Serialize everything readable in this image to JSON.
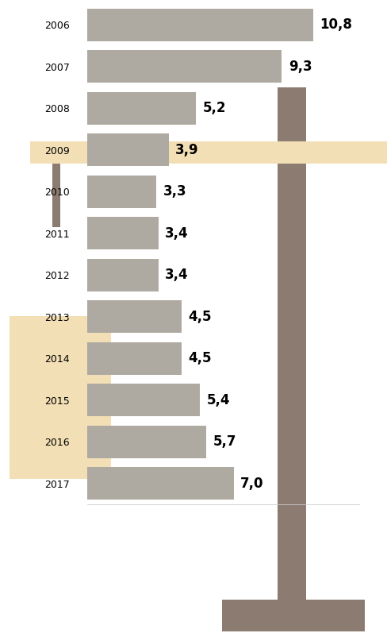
{
  "chart_data": {
    "type": "bar",
    "orientation": "horizontal",
    "categories": [
      "2006",
      "2007",
      "2008",
      "2009",
      "2010",
      "2011",
      "2012",
      "2013",
      "2014",
      "2015",
      "2016",
      "2017"
    ],
    "values": [
      10.8,
      9.3,
      5.2,
      3.9,
      3.3,
      3.4,
      3.4,
      4.5,
      4.5,
      5.4,
      5.7,
      7.0
    ],
    "value_labels": [
      "10,8",
      "9,3",
      "5,2",
      "3,9",
      "3,3",
      "3,4",
      "3,4",
      "4,5",
      "4,5",
      "5,4",
      "5,7",
      "7,0"
    ],
    "color": "#aeaaa2",
    "xlim": [
      0,
      13
    ],
    "data_labels": true,
    "tick_labels": "y",
    "grid": false
  }
}
